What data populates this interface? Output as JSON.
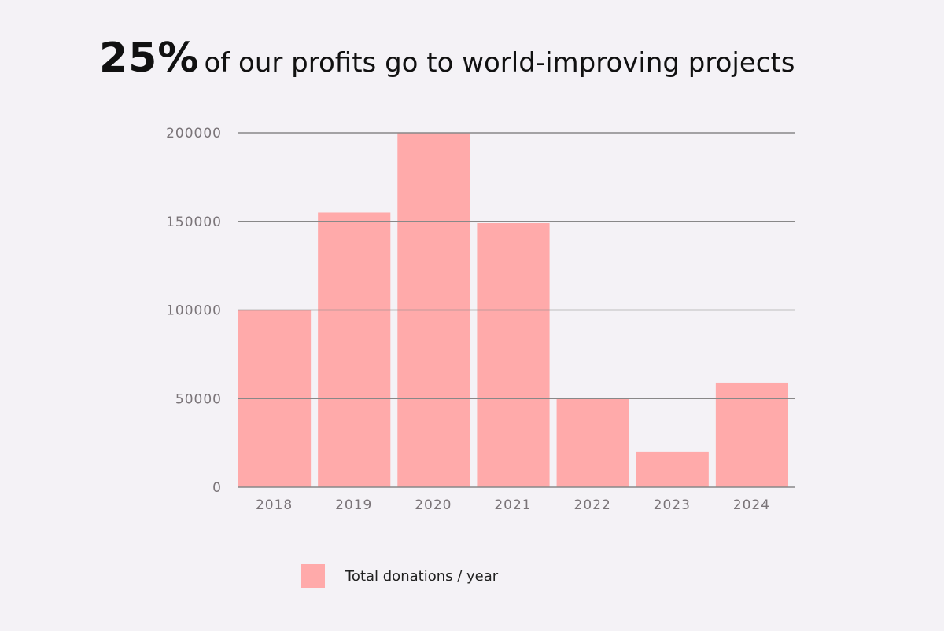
{
  "title": {
    "highlight": "25%",
    "text": "of our profits go to world-improving projects"
  },
  "colors": {
    "bar": "#ffaaaa",
    "grid": "#888888",
    "background": "#f4f2f6"
  },
  "chart_data": {
    "type": "bar",
    "title": "25% of our profits go to world-improving projects",
    "categories": [
      "2018",
      "2019",
      "2020",
      "2021",
      "2022",
      "2023",
      "2024"
    ],
    "series": [
      {
        "name": "Total donations / year",
        "values": [
          100000,
          155000,
          200000,
          149000,
          50000,
          20000,
          59000
        ]
      }
    ],
    "ylim": [
      0,
      200000
    ],
    "yticks": [
      0,
      50000,
      100000,
      150000,
      200000
    ],
    "ytick_labels": [
      "0",
      "50000",
      "100000",
      "150000",
      "200000"
    ],
    "xlabel": "",
    "ylabel": "",
    "grid": true,
    "legend": "bottom"
  }
}
